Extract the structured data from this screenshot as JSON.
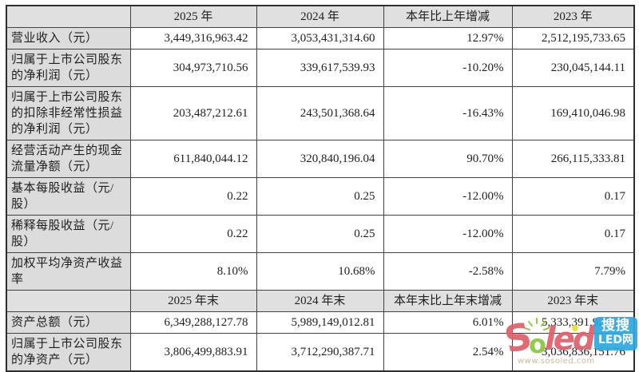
{
  "table": {
    "rows": [
      {
        "type": "header",
        "cells": [
          "",
          "2025 年",
          "2024 年",
          "本年比上年增减",
          "2023 年"
        ]
      },
      {
        "type": "data",
        "cells": [
          "营业收入（元）",
          "3,449,316,963.42",
          "3,053,431,314.60",
          "12.97%",
          "2,512,195,733.65"
        ]
      },
      {
        "type": "data",
        "cells": [
          "归属于上市公司股东的净利润（元）",
          "304,973,710.56",
          "339,617,539.93",
          "-10.20%",
          "230,045,144.11"
        ]
      },
      {
        "type": "data",
        "cells": [
          "归属于上市公司股东的扣除非经常性损益的净利润（元）",
          "203,487,212.61",
          "243,501,368.64",
          "-16.43%",
          "169,410,046.98"
        ]
      },
      {
        "type": "data",
        "cells": [
          "经营活动产生的现金流量净额（元）",
          "611,840,044.12",
          "320,840,196.04",
          "90.70%",
          "266,115,333.81"
        ]
      },
      {
        "type": "data",
        "cells": [
          "基本每股收益（元/股）",
          "0.22",
          "0.25",
          "-12.00%",
          "0.17"
        ]
      },
      {
        "type": "data",
        "cells": [
          "稀释每股收益（元/股）",
          "0.22",
          "0.25",
          "-12.00%",
          "0.17"
        ]
      },
      {
        "type": "data",
        "cells": [
          "加权平均净资产收益率",
          "8.10%",
          "10.68%",
          "-2.58%",
          "7.79%"
        ]
      },
      {
        "type": "header",
        "cells": [
          "",
          "2025 年末",
          "2024 年末",
          "本年末比上年末增减",
          "2023 年末"
        ]
      },
      {
        "type": "data",
        "cells": [
          "资产总额（元）",
          "6,349,288,127.78",
          "5,989,149,012.81",
          "6.01%",
          "5,333,391,923.32"
        ]
      },
      {
        "type": "data",
        "cells": [
          "归属于上市公司股东的净资产（元）",
          "3,806,499,883.91",
          "3,712,290,387.71",
          "2.54%",
          "3,036,836,151.76"
        ]
      }
    ]
  },
  "watermark": {
    "s": "S",
    "o": "o",
    "led": "led",
    "box_top": "搜搜",
    "box_bottom": "LED网",
    "url": "www.sosoled.com"
  },
  "colors": {
    "header_bg": "#e0e0e0",
    "label_bg": "#dcdcdc",
    "border": "#424242",
    "watermark_red": "#e05f6b",
    "watermark_green": "#8cc63e",
    "watermark_blue": "#2fa8e0",
    "watermark_yellow": "#f2da2b"
  }
}
